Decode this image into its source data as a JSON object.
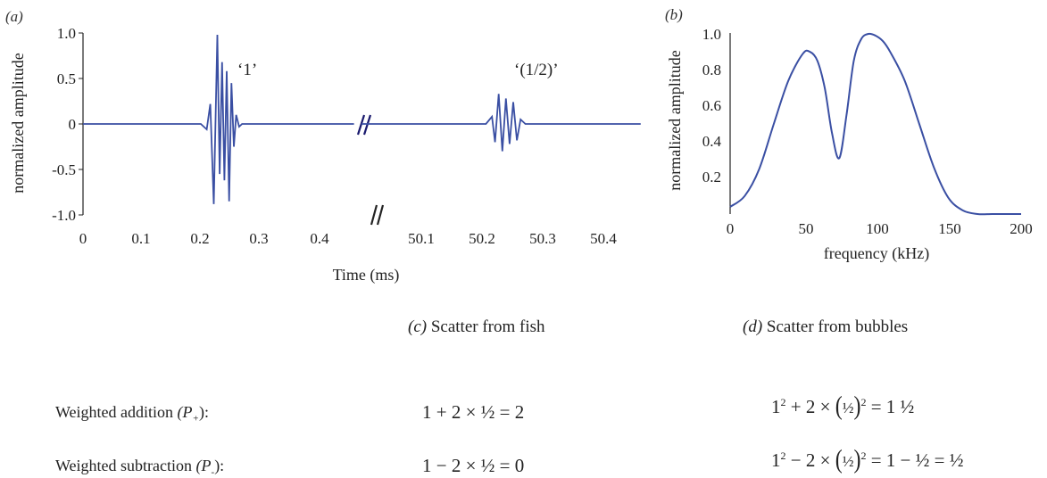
{
  "figure": {
    "panel_a": {
      "label": "(a)",
      "ylabel": "normalized amplitude",
      "xlabel": "Time (ms)",
      "y_ticks": [
        "1.0",
        "0.5",
        "0",
        "-0.5",
        "-1.0"
      ],
      "x_ticks_left": [
        "0",
        "0.1",
        "0.2",
        "0.3",
        "0.4"
      ],
      "x_ticks_right": [
        "50.1",
        "50.2",
        "50.3",
        "50.4"
      ],
      "annotation_1": "‘1’",
      "annotation_2": "‘(1/2)’",
      "line_color": "#3a4fa3"
    },
    "panel_b": {
      "label": "(b)",
      "ylabel": "normalized amplitude",
      "xlabel": "frequency (kHz)",
      "y_ticks": [
        "1.0",
        "0.8",
        "0.6",
        "0.4",
        "0.2"
      ],
      "x_ticks": [
        "0",
        "50",
        "100",
        "150",
        "200"
      ],
      "line_color": "#3a4fa3"
    }
  },
  "chart_data": [
    {
      "type": "line",
      "title": "",
      "xlabel": "Time (ms)",
      "ylabel": "normalized amplitude",
      "x_axis_broken": true,
      "xlim_segments": [
        [
          0,
          0.46
        ],
        [
          50.0,
          50.46
        ]
      ],
      "ylim": [
        -1.0,
        1.0
      ],
      "series": [
        {
          "annotation": "‘1’",
          "x": [
            0,
            0.2,
            0.21,
            0.216,
            0.222,
            0.228,
            0.232,
            0.236,
            0.24,
            0.244,
            0.248,
            0.252,
            0.256,
            0.26,
            0.265,
            0.27,
            0.46
          ],
          "y": [
            0,
            0,
            -0.06,
            0.22,
            -0.88,
            0.98,
            -0.55,
            0.68,
            -0.62,
            0.58,
            -0.85,
            0.45,
            -0.25,
            0.1,
            -0.03,
            0,
            0
          ]
        },
        {
          "annotation": "‘(1/2)’",
          "x": [
            50.0,
            50.205,
            50.215,
            50.22,
            50.226,
            50.232,
            50.238,
            50.244,
            50.25,
            50.256,
            50.262,
            50.27,
            50.46
          ],
          "y": [
            0,
            0,
            0.08,
            -0.2,
            0.33,
            -0.3,
            0.28,
            -0.22,
            0.24,
            -0.18,
            0.05,
            0,
            0
          ]
        }
      ]
    },
    {
      "type": "line",
      "title": "",
      "xlabel": "frequency (kHz)",
      "ylabel": "normalized amplitude",
      "xlim": [
        0,
        200
      ],
      "ylim": [
        0,
        1.0
      ],
      "series": [
        {
          "x": [
            0,
            10,
            20,
            30,
            40,
            50,
            55,
            60,
            65,
            70,
            75,
            80,
            85,
            90,
            95,
            100,
            105,
            110,
            120,
            130,
            140,
            150,
            160,
            170,
            180,
            190,
            200
          ],
          "y": [
            0.04,
            0.1,
            0.25,
            0.5,
            0.74,
            0.89,
            0.9,
            0.85,
            0.7,
            0.45,
            0.31,
            0.55,
            0.85,
            0.97,
            1.0,
            0.99,
            0.96,
            0.9,
            0.74,
            0.5,
            0.26,
            0.09,
            0.02,
            0.0,
            0.0,
            0.0,
            0.0
          ]
        }
      ]
    }
  ],
  "table": {
    "col_c_header_label": "(c)",
    "col_c_header_text": "Scatter from fish",
    "col_d_header_label": "(d)",
    "col_d_header_text": "Scatter from bubbles",
    "row1_label_text": "Weighted addition",
    "row1_label_var": "(P",
    "row1_label_sub": "+",
    "row1_label_end": "):",
    "row2_label_text": "Weighted subtraction",
    "row2_label_var": "(P",
    "row2_label_sub": "-",
    "row2_label_end": "):",
    "row1_c": "1 + 2 × ½ = 2",
    "row2_c": "1 − 2 × ½ = 0",
    "row1_d_a": "1",
    "row1_d_sup1": "2",
    "row1_d_b": " + 2 × ",
    "row1_d_frac": "½",
    "row1_d_sup2": "2",
    "row1_d_c": " = 1 ½",
    "row2_d_a": "1",
    "row2_d_sup1": "2",
    "row2_d_b": " − 2 × ",
    "row2_d_frac": "½",
    "row2_d_sup2": "2",
    "row2_d_c": " = 1 − ½ = ½"
  }
}
